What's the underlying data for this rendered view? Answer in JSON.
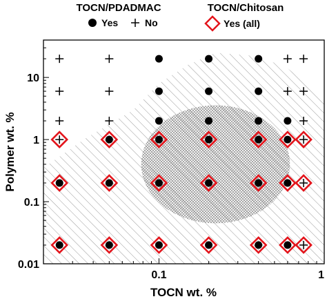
{
  "chart_data": {
    "type": "scatter",
    "xlabel": "TOCN wt. %",
    "ylabel": "Polymer wt. %",
    "x_scale": "log",
    "y_scale": "log",
    "xlim": [
      0.02,
      1
    ],
    "ylim": [
      0.01,
      40
    ],
    "x_ticks": [
      {
        "value": 0.1,
        "label": "0.1"
      },
      {
        "value": 1,
        "label": "1"
      }
    ],
    "y_ticks": [
      {
        "value": 0.01,
        "label": "0.01"
      },
      {
        "value": 0.1,
        "label": "0.1"
      },
      {
        "value": 1,
        "label": "1"
      },
      {
        "value": 10,
        "label": "10"
      }
    ],
    "legend": {
      "placement": "top",
      "groups": [
        {
          "title": "TOCN/PDADMAC",
          "entries": [
            {
              "marker": "filled-circle",
              "label": "Yes"
            },
            {
              "marker": "plus",
              "label": "No"
            }
          ]
        },
        {
          "title": "TOCN/Chitosan",
          "entries": [
            {
              "marker": "red-diamond",
              "label": "Yes (all)"
            }
          ]
        }
      ]
    },
    "series": [
      {
        "name": "TOCN/PDADMAC Yes",
        "marker": "filled-circle",
        "color": "#000000",
        "points": [
          [
            0.1,
            20
          ],
          [
            0.2,
            20
          ],
          [
            0.4,
            20
          ],
          [
            0.1,
            6
          ],
          [
            0.2,
            6
          ],
          [
            0.4,
            6
          ],
          [
            0.1,
            2
          ],
          [
            0.2,
            2
          ],
          [
            0.4,
            2
          ],
          [
            0.6,
            2
          ],
          [
            0.05,
            1
          ],
          [
            0.1,
            1
          ],
          [
            0.2,
            1
          ],
          [
            0.4,
            1
          ],
          [
            0.6,
            1
          ],
          [
            0.025,
            0.2
          ],
          [
            0.05,
            0.2
          ],
          [
            0.1,
            0.2
          ],
          [
            0.2,
            0.2
          ],
          [
            0.4,
            0.2
          ],
          [
            0.6,
            0.2
          ],
          [
            0.025,
            0.02
          ],
          [
            0.05,
            0.02
          ],
          [
            0.1,
            0.02
          ],
          [
            0.2,
            0.02
          ],
          [
            0.4,
            0.02
          ],
          [
            0.6,
            0.02
          ]
        ]
      },
      {
        "name": "TOCN/PDADMAC No",
        "marker": "plus",
        "color": "#000000",
        "points": [
          [
            0.025,
            20
          ],
          [
            0.05,
            20
          ],
          [
            0.6,
            20
          ],
          [
            0.75,
            20
          ],
          [
            0.025,
            6
          ],
          [
            0.05,
            6
          ],
          [
            0.6,
            6
          ],
          [
            0.75,
            6
          ],
          [
            0.025,
            2
          ],
          [
            0.05,
            2
          ],
          [
            0.75,
            2
          ],
          [
            0.025,
            1
          ],
          [
            0.75,
            1
          ],
          [
            0.75,
            0.2
          ],
          [
            0.75,
            0.02
          ]
        ]
      },
      {
        "name": "TOCN/Chitosan Yes (all)",
        "marker": "red-diamond",
        "color": "#e3141b",
        "points": [
          [
            0.025,
            1
          ],
          [
            0.05,
            1
          ],
          [
            0.1,
            1
          ],
          [
            0.2,
            1
          ],
          [
            0.4,
            1
          ],
          [
            0.6,
            1
          ],
          [
            0.75,
            1
          ],
          [
            0.025,
            0.2
          ],
          [
            0.05,
            0.2
          ],
          [
            0.1,
            0.2
          ],
          [
            0.2,
            0.2
          ],
          [
            0.4,
            0.2
          ],
          [
            0.6,
            0.2
          ],
          [
            0.75,
            0.2
          ],
          [
            0.025,
            0.02
          ],
          [
            0.05,
            0.02
          ],
          [
            0.1,
            0.02
          ],
          [
            0.2,
            0.02
          ],
          [
            0.4,
            0.02
          ],
          [
            0.6,
            0.02
          ],
          [
            0.75,
            0.02
          ]
        ]
      }
    ],
    "regions": [
      {
        "pattern": "diagonal-hatch",
        "color": "#9a9a9a",
        "outline": [
          [
            0.02,
            0.01
          ],
          [
            0.02,
            0.35
          ],
          [
            0.035,
            1.0
          ],
          [
            0.07,
            3.0
          ],
          [
            0.1,
            8
          ],
          [
            0.15,
            16
          ],
          [
            0.22,
            25
          ],
          [
            0.4,
            22
          ],
          [
            0.6,
            14
          ],
          [
            0.9,
            6
          ],
          [
            1.0,
            4
          ],
          [
            1.0,
            0.01
          ]
        ]
      },
      {
        "pattern": "cross-hatch",
        "color": "#8a8a8a",
        "center": [
          0.22,
          0.4
        ],
        "radius_decades": [
          0.45,
          0.95
        ]
      }
    ]
  }
}
